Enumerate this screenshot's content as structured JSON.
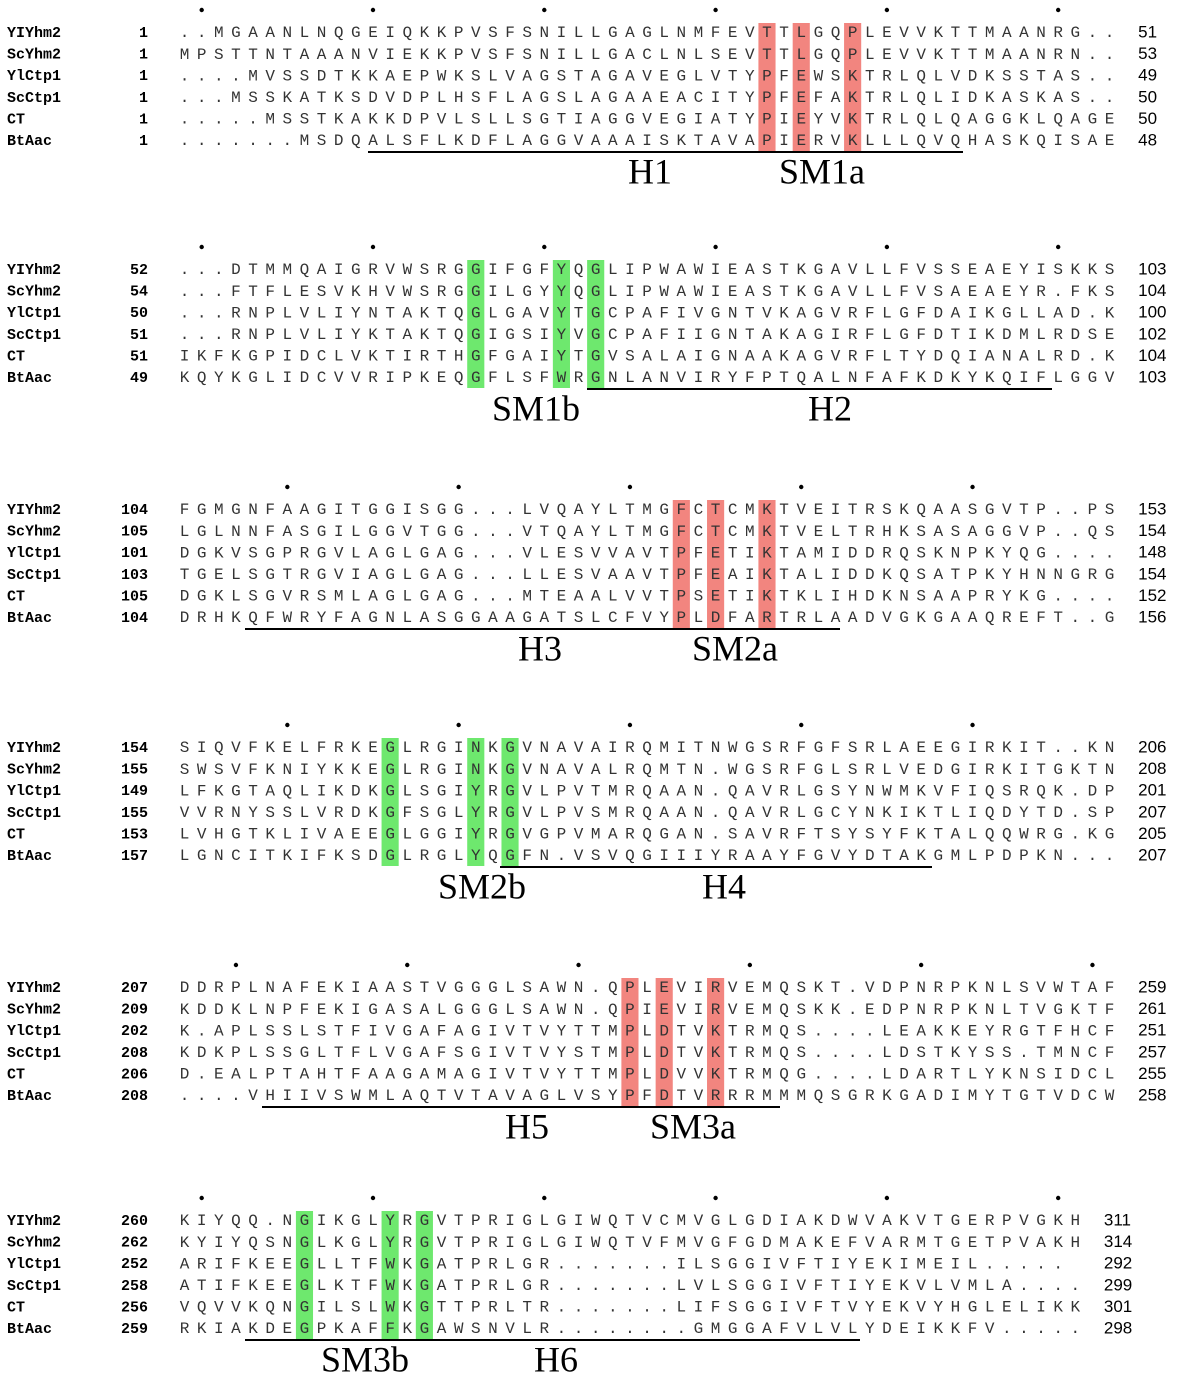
{
  "blocks": [
    {
      "rows": [
        {
          "name": "YIYhm2",
          "start": "1",
          "sequence": "..MGAANLNQGEIQKKPVSFSNILLGAGLNMFEVTTLGQPLEVVKTTMAANRG..",
          "end": "51"
        },
        {
          "name": "ScYhm2",
          "start": "1",
          "sequence": "MPSTTNTAAANVIEKKPVSFSNILLGACLNLSEVTTLGQPLEVVKTTMAANRN..",
          "end": "53"
        },
        {
          "name": "YlCtp1",
          "start": "1",
          "sequence": "....MVSSDTKKAEPWKSLVAGSTAGAVEGLVTYPFEWSKTRLQLVDKSSTAS..",
          "end": "49"
        },
        {
          "name": "ScCtp1",
          "start": "1",
          "sequence": "...MSSKATKSDVDPLHSFLAGSLAGAAEACITYPFEFAKTRLQLIDKASKAS..",
          "end": "50"
        },
        {
          "name": "CT",
          "start": "1",
          "sequence": ".....MSSTKAKKDPVLSLLSGTIAGGVEGIATYPIEYVKTRLQLQAGGKLQAGE",
          "end": "50"
        },
        {
          "name": "BtAac",
          "start": "1",
          "sequence": ".......MSDQALSFLKDFLAGGVAAAISKTAVAPIERVKLLLQVQHASKQISAE",
          "end": "48"
        }
      ],
      "labels": [
        "H1",
        "SM1a"
      ]
    },
    {
      "rows": [
        {
          "name": "YIYhm2",
          "start": "52",
          "sequence": "...DTMMQAIGRVWSRGGIFGFYQGLIPWAWIEASTKGAVLLFVSSEAEYISKKS",
          "end": "103"
        },
        {
          "name": "ScYhm2",
          "start": "54",
          "sequence": "...FTFLESVKHVWSRGGILGYYQGLIPWAWIEASTKGAVLLFVSAEAEYR.FKS",
          "end": "104"
        },
        {
          "name": "YlCtp1",
          "start": "50",
          "sequence": "...RNPLVLIYNTAKTQGLGAVYTGCPAFIVGNTVKAGVRFLGFDAIKGLLAD.K",
          "end": "100"
        },
        {
          "name": "ScCtp1",
          "start": "51",
          "sequence": "...RNPLVLIYKTAKTQGIGSIYVGCPAFIIGNTAKAGIRFLGFDTIKDMLRDSE",
          "end": "102"
        },
        {
          "name": "CT",
          "start": "51",
          "sequence": "IKFKGPIDCLVKTIRTHGFGAIYTGVSALAIGNAAKAGVRFLTYDQIANALRD.K",
          "end": "104"
        },
        {
          "name": "BtAac",
          "start": "49",
          "sequence": "KQYKGLIDCVVRIPKEQGFLSFWRGNLANVIRYFPTQALNFAFKDKYKQIFLGGV",
          "end": "103"
        }
      ],
      "labels": [
        "SM1b",
        "H2"
      ]
    },
    {
      "rows": [
        {
          "name": "YIYhm2",
          "start": "104",
          "sequence": "FGMGNFAAGITGGISGG...LVQAYLTMGFCTCMKTVEITRSKQAASGVTP..PS",
          "end": "153"
        },
        {
          "name": "ScYhm2",
          "start": "105",
          "sequence": "LGLNNFASGILGGVTGG...VTQAYLTMGFCTCMKTVELTRHKSASAGGVP..QS",
          "end": "154"
        },
        {
          "name": "YlCtp1",
          "start": "101",
          "sequence": "DGKVSGPRGVLAGLGAG...VLESVVAVTPFETIKTAMIDDRQSKNPKYQG....",
          "end": "148"
        },
        {
          "name": "ScCtp1",
          "start": "103",
          "sequence": "TGELSGTRGVIAGLGAG...LLESVAAVTPFEAIKTALIDDKQSATPKYHNNGRG",
          "end": "154"
        },
        {
          "name": "CT",
          "start": "105",
          "sequence": "DGKLSGVRSMLAGLGAG...MTEAALVVTPSETIKTKLIHDKNSAAPRYKG....",
          "end": "152"
        },
        {
          "name": "BtAac",
          "start": "104",
          "sequence": "DRHKQFWRYFAGNLASGGAAGATSLCFVYPLDFARTRLAADVGKGAAQREFT..G",
          "end": "156"
        }
      ],
      "labels": [
        "H3",
        "SM2a"
      ]
    },
    {
      "rows": [
        {
          "name": "YIYhm2",
          "start": "154",
          "sequence": "SIQVFKELFRKEGLRGINKGVNAVAIRQMITNWGSRFGFSRLAEEGIRKIT..KN",
          "end": "206"
        },
        {
          "name": "ScYhm2",
          "start": "155",
          "sequence": "SWSVFKNIYKKEGLRGINKGVNAVALRQMTN.WGSRFGLSRLVEDGIRKITGKTN",
          "end": "208"
        },
        {
          "name": "YlCtp1",
          "start": "149",
          "sequence": "LFKGTAQLIKDKGLSGIYRGVLPVTMRQAAN.QAVRLGSYNWMKVFIQSRQK.DP",
          "end": "201"
        },
        {
          "name": "ScCtp1",
          "start": "155",
          "sequence": "VVRNYSSLVRDKGFSGLYRGVLPVSMRQAAN.QAVRLGCYNKIKTLIQDYTD.SP",
          "end": "207"
        },
        {
          "name": "CT",
          "start": "153",
          "sequence": "LVHGTKLIVAEEGLGGIYRGVGPVMARQGAN.SAVRFTSYSYFKTALQQWRG.KG",
          "end": "205"
        },
        {
          "name": "BtAac",
          "start": "157",
          "sequence": "LGNCITKIFKSDGLRGLYQGFN.VSVQGIIIYRAAYFGVYDTAKGMLPDPKN...",
          "end": "207"
        }
      ],
      "labels": [
        "SM2b",
        "H4"
      ]
    },
    {
      "rows": [
        {
          "name": "YIYhm2",
          "start": "207",
          "sequence": "DDRPLNAFEKIAASTVGGGLSAWN.QPLEVIRVEMQSKT.VDPNRPKNLSVWTAF",
          "end": "259"
        },
        {
          "name": "ScYhm2",
          "start": "209",
          "sequence": "KDDKLNPFEKIGASALGGGLSAWN.QPIEVIRVEMQSKK.EDPNRPKNLTVGKTF",
          "end": "261"
        },
        {
          "name": "YlCtp1",
          "start": "202",
          "sequence": "K.APLSSLSTFIVGAFAGIVTVYTTMPLDTVKTRMQS....LEAKKEYRGTFHCF",
          "end": "251"
        },
        {
          "name": "ScCtp1",
          "start": "208",
          "sequence": "KDKPLSSGLTFLVGAFSGIVTVYSTMPLDTVKTRMQS....LDSTKYSS.TMNCF",
          "end": "257"
        },
        {
          "name": "CT",
          "start": "206",
          "sequence": "D.EALPTAHTFAAGAMAGIVTVYTTMPLDVVKTRMQG....LDARTLYKNSIDCL",
          "end": "255"
        },
        {
          "name": "BtAac",
          "start": "208",
          "sequence": "....VHIIVSWMLAQTVTAVAGLVSYPFDTVRRRMMMQSGRKGADIMYTGTVDCW",
          "end": "258"
        }
      ],
      "labels": [
        "H5",
        "SM3a"
      ]
    },
    {
      "rows": [
        {
          "name": "YIYhm2",
          "start": "260",
          "sequence": "KIYQQ.NGIKGLYRGVTPRIGLGIWQTVCMVGLGDIAKDWVAKVTGERPVGKH",
          "end": "311"
        },
        {
          "name": "ScYhm2",
          "start": "262",
          "sequence": "KYIYQSNGLKGLYRGVTPRIGLGIWQTVFMVGFGDMAKEFVARMTGETPVAKH",
          "end": "314"
        },
        {
          "name": "YlCtp1",
          "start": "252",
          "sequence": "ARIFKEEGLLTFWKGATPRLGR.......ILSGGIVFTIYEKIMEIL.....",
          "end": "292"
        },
        {
          "name": "ScCtp1",
          "start": "258",
          "sequence": "ATIFKEEGLKTFWKGATPRLGR.......LVLSGGIVFTIYEKVLVMLA....",
          "end": "299"
        },
        {
          "name": "CT",
          "start": "256",
          "sequence": "VQVVKQNGILSLWKGTTPRLTR.......LIFSGGIVFTVYEKVYHGLELIKK",
          "end": "301"
        },
        {
          "name": "BtAac",
          "start": "259",
          "sequence": "RKIAKDEGPKAFFKGAWSNVLR........GMGGAFVLVLYDEIKKFV.....",
          "end": "298"
        }
      ],
      "labels": [
        "SM3b",
        "H6"
      ]
    }
  ]
}
